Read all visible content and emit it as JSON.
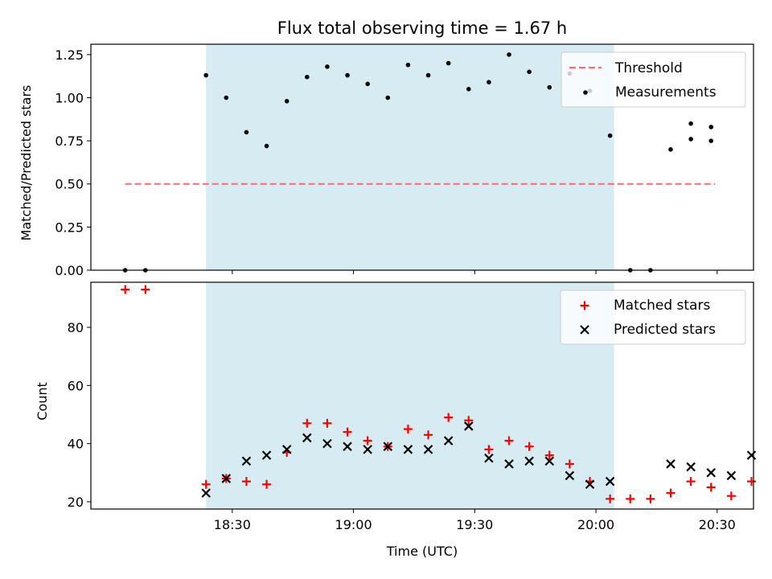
{
  "figure": {
    "title": "Flux total observing time = 1.67 h",
    "xlabel": "Time (UTC)",
    "xticks": [
      "18:30",
      "19:00",
      "19:30",
      "20:00",
      "20:30"
    ],
    "xtick_minutes": [
      30,
      60,
      90,
      120,
      150
    ],
    "xlim_minutes": [
      -5,
      159
    ],
    "shaded_span_minutes": [
      23.5,
      124.5
    ],
    "colors": {
      "span": "#add8e6",
      "threshold": "#ff6b6b",
      "matched": "#ff0000",
      "measurement": "#000000",
      "predicted": "#000000"
    }
  },
  "chart_data": [
    {
      "type": "scatter",
      "panel": "top",
      "ylabel": "Matched/Predicted stars",
      "ylim": [
        0,
        1.31
      ],
      "yticks": [
        "0.00",
        "0.25",
        "0.50",
        "0.75",
        "1.00",
        "1.25"
      ],
      "ytick_values": [
        0,
        0.25,
        0.5,
        0.75,
        1.0,
        1.25
      ],
      "threshold": {
        "name": "Threshold",
        "value": 0.5,
        "x_range": [
          3.5,
          149.5
        ]
      },
      "series": [
        {
          "name": "Measurements",
          "x": [
            3.5,
            8.5,
            13.5,
            18.5,
            23.5,
            28.5,
            33.5,
            38.5,
            43.5,
            48.5,
            53.5,
            58.5,
            63.5,
            68.5,
            73.5,
            78.5,
            83.5,
            88.5,
            93.5,
            98.5,
            103.5,
            108.5,
            113.5,
            118.5,
            123.5,
            128.5,
            133.5,
            138.5,
            143.5,
            148.5
          ],
          "values": [
            0.0,
            0.0,
            null,
            null,
            1.13,
            1.0,
            0.8,
            0.72,
            0.98,
            1.12,
            1.18,
            1.13,
            1.08,
            1.0,
            1.19,
            1.13,
            1.2,
            1.05,
            1.09,
            1.25,
            1.15,
            1.06,
            1.14,
            1.04,
            0.78,
            0.0,
            0.0,
            0.7,
            0.85,
            0.83
          ]
        }
      ],
      "extra_points": {
        "x": [
          143.5,
          148.5
        ],
        "values": [
          0.76,
          0.75
        ]
      },
      "legend": [
        "Threshold",
        "Measurements"
      ],
      "legend_position": "upper right"
    },
    {
      "type": "scatter",
      "panel": "bottom",
      "ylabel": "Count",
      "ylim": [
        17.5,
        95.5
      ],
      "yticks": [
        "20",
        "40",
        "60",
        "80"
      ],
      "ytick_values": [
        20,
        40,
        60,
        80
      ],
      "series": [
        {
          "name": "Matched stars",
          "marker": "plus",
          "x": [
            3.5,
            8.5,
            23.5,
            28.5,
            33.5,
            38.5,
            43.5,
            48.5,
            53.5,
            58.5,
            63.5,
            68.5,
            73.5,
            78.5,
            83.5,
            88.5,
            93.5,
            98.5,
            103.5,
            108.5,
            113.5,
            118.5,
            123.5,
            128.5,
            133.5,
            138.5,
            143.5,
            148.5,
            153.5,
            158.5
          ],
          "values": [
            93,
            93,
            26,
            28,
            27,
            26,
            37,
            47,
            47,
            44,
            41,
            39,
            45,
            43,
            49,
            48,
            38,
            41,
            39,
            36,
            33,
            27,
            21,
            21,
            21,
            23,
            27,
            25,
            22,
            27
          ]
        },
        {
          "name": "Predicted stars",
          "marker": "x",
          "x": [
            23.5,
            28.5,
            33.5,
            38.5,
            43.5,
            48.5,
            53.5,
            58.5,
            63.5,
            68.5,
            73.5,
            78.5,
            83.5,
            88.5,
            93.5,
            98.5,
            103.5,
            108.5,
            113.5,
            118.5,
            123.5,
            138.5,
            143.5,
            148.5,
            153.5,
            158.5
          ],
          "values": [
            23,
            28,
            34,
            36,
            38,
            42,
            40,
            39,
            38,
            39,
            38,
            38,
            41,
            46,
            35,
            33,
            34,
            34,
            29,
            26,
            27,
            33,
            32,
            30,
            29,
            36
          ]
        }
      ],
      "legend": [
        "Matched stars",
        "Predicted stars"
      ],
      "legend_position": "upper right"
    }
  ]
}
